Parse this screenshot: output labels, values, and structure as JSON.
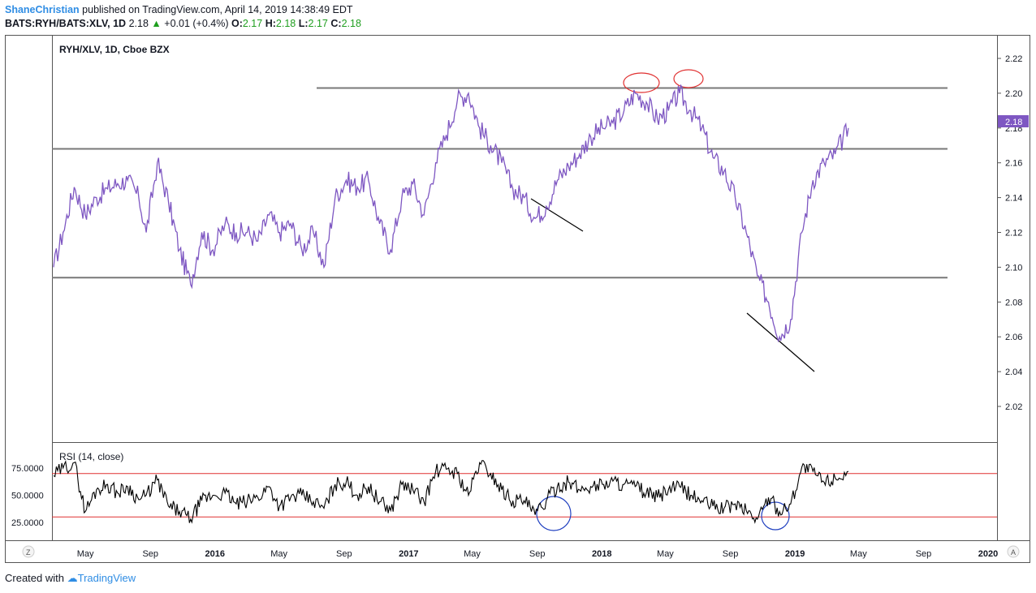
{
  "header": {
    "author": "ShaneChristian",
    "published_text": "published on TradingView.com, April 14, 2019 14:38:49 EDT",
    "symbol": "BATS:RYH/BATS:XLV, 1D",
    "last": "2.18",
    "change": "+0.01 (+0.4%)",
    "o_label": "O:",
    "o_value": "2.17",
    "h_label": "H:",
    "h_value": "2.18",
    "l_label": "L:",
    "l_value": "2.17",
    "c_label": "C:",
    "c_value": "2.18"
  },
  "footer": {
    "created_with": "Created with",
    "brand": "TradingView"
  },
  "colors": {
    "price": "#7e57c2",
    "rsi": "#000000",
    "rsi_band": "#e03030",
    "level": "#787878",
    "circle_red": "#e03030",
    "circle_blue": "#2040c0",
    "price_tag": "#7e57c2"
  },
  "chart_data": [
    {
      "type": "line",
      "title": "RYH/XLV, 1D, Cboe BZX",
      "last_price_label": "2.18",
      "ylim": [
        2.0,
        2.225
      ],
      "y_ticks": [
        "2.22",
        "2.20",
        "2.18",
        "2.16",
        "2.14",
        "2.12",
        "2.10",
        "2.08",
        "2.06",
        "2.04",
        "2.02"
      ],
      "x_ticks": [
        {
          "label": "May",
          "bold": false
        },
        {
          "label": "Sep",
          "bold": false
        },
        {
          "label": "2016",
          "bold": true
        },
        {
          "label": "May",
          "bold": false
        },
        {
          "label": "Sep",
          "bold": false
        },
        {
          "label": "2017",
          "bold": true
        },
        {
          "label": "May",
          "bold": false
        },
        {
          "label": "Sep",
          "bold": false
        },
        {
          "label": "2018",
          "bold": true
        },
        {
          "label": "May",
          "bold": false
        },
        {
          "label": "Sep",
          "bold": false
        },
        {
          "label": "2019",
          "bold": true
        },
        {
          "label": "May",
          "bold": false
        },
        {
          "label": "Sep",
          "bold": false
        },
        {
          "label": "2020",
          "bold": true
        }
      ],
      "x_tick_dates": [
        "2015-05-01",
        "2015-09-01",
        "2016-01-01",
        "2016-05-01",
        "2016-09-01",
        "2017-01-01",
        "2017-05-01",
        "2017-09-01",
        "2018-01-01",
        "2018-05-01",
        "2018-09-01",
        "2019-01-01",
        "2019-05-01",
        "2019-09-01",
        "2020-01-01"
      ],
      "horizontal_levels": [
        2.203,
        2.168,
        2.094
      ],
      "series": [
        {
          "x": [
            "2015-03-02",
            "2015-03-20",
            "2015-04-10",
            "2015-05-01",
            "2015-05-22",
            "2015-06-12",
            "2015-07-01",
            "2015-07-20",
            "2015-08-10",
            "2015-08-24",
            "2015-09-14",
            "2015-10-05",
            "2015-10-26",
            "2015-11-16",
            "2015-12-07",
            "2015-12-28",
            "2016-01-20",
            "2016-02-10",
            "2016-03-02",
            "2016-03-22",
            "2016-04-12",
            "2016-05-02",
            "2016-05-23",
            "2016-06-13",
            "2016-07-05",
            "2016-07-25",
            "2016-08-15",
            "2016-09-05",
            "2016-09-26",
            "2016-10-17",
            "2016-11-07",
            "2016-11-28",
            "2016-12-19",
            "2017-01-09",
            "2017-01-30",
            "2017-02-21",
            "2017-03-13",
            "2017-04-03",
            "2017-04-24",
            "2017-05-15",
            "2017-06-05",
            "2017-06-26",
            "2017-07-17",
            "2017-08-07",
            "2017-08-28",
            "2017-09-18",
            "2017-10-09",
            "2017-10-30",
            "2017-11-20",
            "2017-12-11",
            "2018-01-02",
            "2018-01-22",
            "2018-02-12",
            "2018-03-05",
            "2018-03-26",
            "2018-04-16",
            "2018-05-07",
            "2018-05-28",
            "2018-06-18",
            "2018-07-09",
            "2018-07-30",
            "2018-08-20",
            "2018-09-10",
            "2018-10-01",
            "2018-10-22",
            "2018-11-12",
            "2018-12-03",
            "2018-12-24",
            "2019-01-14",
            "2019-02-04",
            "2019-02-25",
            "2019-03-18",
            "2019-04-12"
          ],
          "y": [
            2.1,
            2.12,
            2.146,
            2.13,
            2.14,
            2.145,
            2.148,
            2.15,
            2.14,
            2.12,
            2.16,
            2.138,
            2.11,
            2.09,
            2.12,
            2.11,
            2.125,
            2.12,
            2.12,
            2.115,
            2.13,
            2.12,
            2.125,
            2.11,
            2.12,
            2.1,
            2.14,
            2.15,
            2.146,
            2.15,
            2.125,
            2.11,
            2.14,
            2.148,
            2.13,
            2.16,
            2.176,
            2.196,
            2.2,
            2.18,
            2.17,
            2.16,
            2.145,
            2.14,
            2.128,
            2.135,
            2.15,
            2.158,
            2.165,
            2.175,
            2.18,
            2.183,
            2.19,
            2.2,
            2.195,
            2.185,
            2.19,
            2.2,
            2.19,
            2.18,
            2.163,
            2.155,
            2.14,
            2.12,
            2.095,
            2.08,
            2.06,
            2.07,
            2.12,
            2.15,
            2.16,
            2.165,
            2.18
          ]
        }
      ]
    },
    {
      "type": "line",
      "title": "RSI (14, close)",
      "ylim": [
        12,
        90
      ],
      "y_ticks": [
        "75.0000",
        "50.0000",
        "25.0000"
      ],
      "bands": [
        70,
        30
      ],
      "series": [
        {
          "x": [
            "2015-03-02",
            "2015-03-20",
            "2015-04-10",
            "2015-05-01",
            "2015-05-22",
            "2015-06-12",
            "2015-07-01",
            "2015-07-20",
            "2015-08-10",
            "2015-08-24",
            "2015-09-14",
            "2015-10-05",
            "2015-10-26",
            "2015-11-16",
            "2015-12-07",
            "2015-12-28",
            "2016-01-20",
            "2016-02-10",
            "2016-03-02",
            "2016-03-22",
            "2016-04-12",
            "2016-05-02",
            "2016-05-23",
            "2016-06-13",
            "2016-07-05",
            "2016-07-25",
            "2016-08-15",
            "2016-09-05",
            "2016-09-26",
            "2016-10-17",
            "2016-11-07",
            "2016-11-28",
            "2016-12-19",
            "2017-01-09",
            "2017-01-30",
            "2017-02-21",
            "2017-03-13",
            "2017-04-03",
            "2017-04-24",
            "2017-05-15",
            "2017-06-05",
            "2017-06-26",
            "2017-07-17",
            "2017-08-07",
            "2017-08-28",
            "2017-09-18",
            "2017-10-09",
            "2017-10-30",
            "2017-11-20",
            "2017-12-11",
            "2018-01-02",
            "2018-01-22",
            "2018-02-12",
            "2018-03-05",
            "2018-03-26",
            "2018-04-16",
            "2018-05-07",
            "2018-05-28",
            "2018-06-18",
            "2018-07-09",
            "2018-07-30",
            "2018-08-20",
            "2018-09-10",
            "2018-10-01",
            "2018-10-22",
            "2018-11-12",
            "2018-12-03",
            "2018-12-24",
            "2019-01-14",
            "2019-02-04",
            "2019-02-25",
            "2019-03-18",
            "2019-04-12"
          ],
          "y": [
            68,
            75,
            80,
            35,
            55,
            60,
            52,
            58,
            46,
            50,
            64,
            40,
            35,
            28,
            45,
            50,
            52,
            42,
            44,
            48,
            58,
            40,
            48,
            50,
            44,
            38,
            60,
            62,
            50,
            58,
            44,
            36,
            60,
            55,
            44,
            72,
            74,
            70,
            50,
            80,
            70,
            55,
            45,
            45,
            32,
            45,
            58,
            62,
            55,
            58,
            60,
            63,
            60,
            58,
            52,
            48,
            55,
            58,
            50,
            45,
            40,
            38,
            42,
            36,
            28,
            48,
            35,
            42,
            76,
            72,
            62,
            66,
            72
          ]
        }
      ]
    }
  ]
}
